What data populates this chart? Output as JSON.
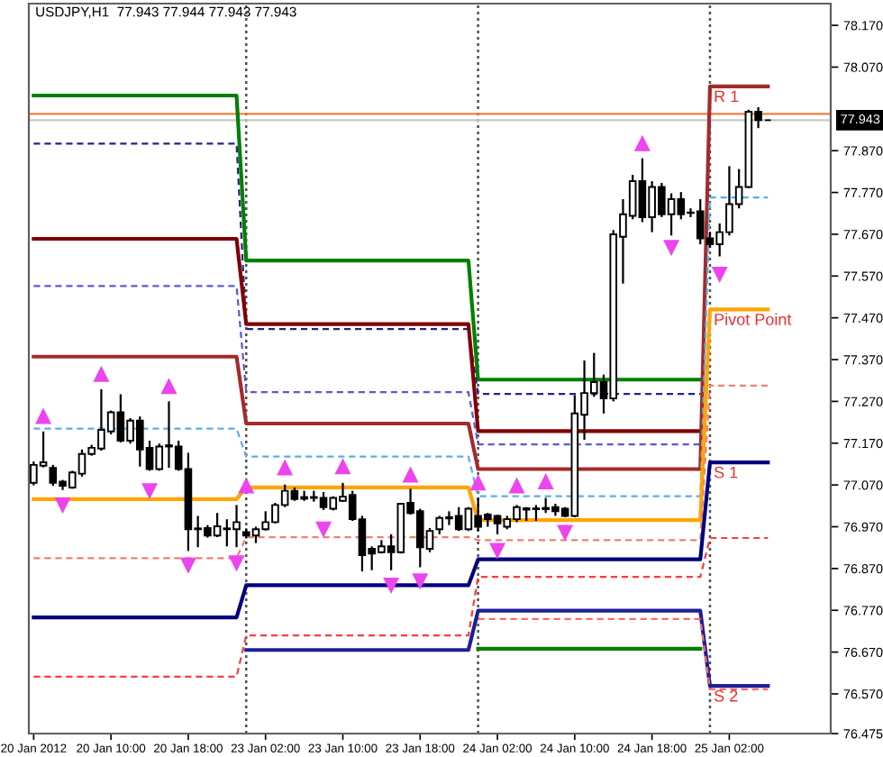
{
  "chart_data": {
    "type": "candlestick",
    "title": "USDJPY,H1  77.943 77.944 77.943 77.943",
    "categories": [
      "20 Jan 2012",
      null,
      null,
      null,
      null,
      null,
      null,
      null,
      "20 Jan 10:00",
      null,
      null,
      null,
      null,
      null,
      null,
      null,
      "20 Jan 18:00",
      null,
      null,
      null,
      null,
      null,
      null,
      null,
      "23 Jan 02:00",
      null,
      null,
      null,
      null,
      null,
      null,
      null,
      "23 Jan 10:00",
      null,
      null,
      null,
      null,
      null,
      null,
      null,
      "23 Jan 18:00",
      null,
      null,
      null,
      null,
      null,
      null,
      null,
      "24 Jan 02:00",
      null,
      null,
      null,
      null,
      null,
      null,
      null,
      "24 Jan 10:00",
      null,
      null,
      null,
      null,
      null,
      null,
      null,
      "24 Jan 18:00",
      null,
      null,
      null,
      null,
      null,
      null,
      null,
      "25 Jan 02:00",
      null,
      null,
      null,
      null,
      null,
      null,
      null,
      null,
      null,
      null
    ],
    "ohlc": [
      [
        77.075,
        77.126,
        77.069,
        77.118
      ],
      [
        77.116,
        77.198,
        77.112,
        77.124
      ],
      [
        77.111,
        77.118,
        77.068,
        77.075
      ],
      [
        77.078,
        77.082,
        77.058,
        77.068
      ],
      [
        77.064,
        77.104,
        77.061,
        77.1
      ],
      [
        77.097,
        77.155,
        77.09,
        77.144
      ],
      [
        77.144,
        77.166,
        77.14,
        77.159
      ],
      [
        77.157,
        77.299,
        77.152,
        77.202
      ],
      [
        77.198,
        77.248,
        77.191,
        77.244
      ],
      [
        77.244,
        77.287,
        77.172,
        77.176
      ],
      [
        77.176,
        77.23,
        77.169,
        77.224
      ],
      [
        77.224,
        77.234,
        77.114,
        77.155
      ],
      [
        77.159,
        77.176,
        77.104,
        77.108
      ],
      [
        77.108,
        77.169,
        77.104,
        77.162
      ],
      [
        77.162,
        77.27,
        77.111,
        77.165
      ],
      [
        77.162,
        77.176,
        77.104,
        77.108
      ],
      [
        77.108,
        77.147,
        76.912,
        76.964
      ],
      [
        76.964,
        76.996,
        76.921,
        76.966
      ],
      [
        76.967,
        76.974,
        76.944,
        76.949
      ],
      [
        76.949,
        77.003,
        76.945,
        76.971
      ],
      [
        76.964,
        76.988,
        76.923,
        76.966
      ],
      [
        76.964,
        77.022,
        76.921,
        76.981
      ],
      [
        76.957,
        76.966,
        76.942,
        76.949
      ],
      [
        76.949,
        76.97,
        76.931,
        76.964
      ],
      [
        76.964,
        77.007,
        76.961,
        76.981
      ],
      [
        76.981,
        77.027,
        76.978,
        77.022
      ],
      [
        77.022,
        77.071,
        77.017,
        77.056
      ],
      [
        77.056,
        77.064,
        77.032,
        77.036
      ],
      [
        77.037,
        77.056,
        77.032,
        77.041
      ],
      [
        77.041,
        77.056,
        77.03,
        77.039
      ],
      [
        77.039,
        77.053,
        77.01,
        77.017
      ],
      [
        77.013,
        77.043,
        77.009,
        77.039
      ],
      [
        77.032,
        77.075,
        77.03,
        77.042
      ],
      [
        77.046,
        77.056,
        76.984,
        76.988
      ],
      [
        76.988,
        76.996,
        76.863,
        76.902
      ],
      [
        76.917,
        76.923,
        76.866,
        76.906
      ],
      [
        76.909,
        76.938,
        76.906,
        76.923
      ],
      [
        76.923,
        76.952,
        76.866,
        76.909
      ],
      [
        76.909,
        77.027,
        76.906,
        77.025
      ],
      [
        77.027,
        77.061,
        76.999,
        77.003
      ],
      [
        77.007,
        77.013,
        76.873,
        76.921
      ],
      [
        76.917,
        76.967,
        76.909,
        76.96
      ],
      [
        76.964,
        76.996,
        76.952,
        76.991
      ],
      [
        76.99,
        77.007,
        76.974,
        76.993
      ],
      [
        76.996,
        77.017,
        76.96,
        76.964
      ],
      [
        76.964,
        77.017,
        76.96,
        77.013
      ],
      [
        76.996,
        77.039,
        76.96,
        76.97
      ],
      [
        76.999,
        77.003,
        76.97,
        76.988
      ],
      [
        76.996,
        76.999,
        76.952,
        76.978
      ],
      [
        76.97,
        76.996,
        76.964,
        76.988
      ],
      [
        76.988,
        77.022,
        76.981,
        77.017
      ],
      [
        77.011,
        77.017,
        76.984,
        77.014
      ],
      [
        77.014,
        77.022,
        76.984,
        77.012
      ],
      [
        77.012,
        77.039,
        77.003,
        77.015
      ],
      [
        77.017,
        77.025,
        76.996,
        77.007
      ],
      [
        77.013,
        77.017,
        76.993,
        76.996
      ],
      [
        76.996,
        77.285,
        76.993,
        77.241
      ],
      [
        77.238,
        77.368,
        77.178,
        77.29
      ],
      [
        77.29,
        77.386,
        77.281,
        77.316
      ],
      [
        77.316,
        77.334,
        77.241,
        77.277
      ],
      [
        77.277,
        77.68,
        77.27,
        77.67
      ],
      [
        77.664,
        77.754,
        77.552,
        77.718
      ],
      [
        77.714,
        77.812,
        77.706,
        77.797
      ],
      [
        77.797,
        77.852,
        77.699,
        77.711
      ],
      [
        77.711,
        77.797,
        77.675,
        77.783
      ],
      [
        77.783,
        77.793,
        77.711,
        77.718
      ],
      [
        77.718,
        77.768,
        77.667,
        77.754
      ],
      [
        77.754,
        77.771,
        77.706,
        77.718
      ],
      [
        77.722,
        77.732,
        77.711,
        77.721
      ],
      [
        77.725,
        77.754,
        77.646,
        77.66
      ],
      [
        77.66,
        77.676,
        77.638,
        77.646
      ],
      [
        77.646,
        77.696,
        77.617,
        77.675
      ],
      [
        77.675,
        77.833,
        77.667,
        77.742
      ],
      [
        77.742,
        77.826,
        77.732,
        77.783
      ],
      [
        77.783,
        77.968,
        77.78,
        77.963
      ],
      [
        77.963,
        77.974,
        77.924,
        77.943
      ],
      [
        77.943,
        77.944,
        77.943,
        77.943
      ],
      null,
      null,
      null,
      null,
      null,
      null
    ],
    "color": "#000000",
    "ylim": [
      76.475,
      78.222
    ],
    "yticks": [
      {
        "value": 78.17,
        "label": "78.170"
      },
      {
        "value": 78.07,
        "label": "78.070"
      },
      {
        "value": 77.87,
        "label": "77.870"
      },
      {
        "value": 77.77,
        "label": "77.770"
      },
      {
        "value": 77.67,
        "label": "77.670"
      },
      {
        "value": 77.57,
        "label": "77.570"
      },
      {
        "value": 77.47,
        "label": "77.470"
      },
      {
        "value": 77.37,
        "label": "77.370"
      },
      {
        "value": 77.27,
        "label": "77.270"
      },
      {
        "value": 77.17,
        "label": "77.170"
      },
      {
        "value": 77.07,
        "label": "77.070"
      },
      {
        "value": 76.97,
        "label": "76.970"
      },
      {
        "value": 76.87,
        "label": "76.870"
      },
      {
        "value": 76.77,
        "label": "76.770"
      },
      {
        "value": 76.67,
        "label": "76.670"
      },
      {
        "value": 76.57,
        "label": "76.570"
      },
      {
        "value": 76.475,
        "label": "76.475"
      }
    ],
    "series": [
      {
        "type": "line",
        "color": "#008000",
        "line_style": "solid",
        "values": [
          78.002,
          78.002,
          78.002,
          78.002,
          78.002,
          78.002,
          78.002,
          78.002,
          78.002,
          78.002,
          78.002,
          78.002,
          78.002,
          78.002,
          78.002,
          78.002,
          78.002,
          78.002,
          78.002,
          78.002,
          78.002,
          78.002,
          77.607,
          77.607,
          77.607,
          77.607,
          77.607,
          77.607,
          77.607,
          77.607,
          77.607,
          77.607,
          77.607,
          77.607,
          77.607,
          77.607,
          77.607,
          77.607,
          77.607,
          77.607,
          77.607,
          77.607,
          77.607,
          77.607,
          77.607,
          77.607,
          77.322,
          77.322,
          77.322,
          77.322,
          77.322,
          77.322,
          77.322,
          77.322,
          77.322,
          77.322,
          77.322,
          77.322,
          77.322,
          77.322,
          77.322,
          77.322,
          77.322,
          77.322,
          77.322,
          77.322,
          77.322,
          77.322,
          77.322,
          77.322,
          null,
          null,
          null,
          null,
          null,
          null,
          null,
          null,
          null,
          null,
          null,
          null,
          null
        ]
      },
      {
        "type": "line",
        "color": "#23238c",
        "line_style": "dashed",
        "values": [
          77.887,
          77.887,
          77.887,
          77.887,
          77.887,
          77.887,
          77.887,
          77.887,
          77.887,
          77.887,
          77.887,
          77.887,
          77.887,
          77.887,
          77.887,
          77.887,
          77.887,
          77.887,
          77.887,
          77.887,
          77.887,
          77.887,
          77.443,
          77.443,
          77.443,
          77.443,
          77.443,
          77.443,
          77.443,
          77.443,
          77.443,
          77.443,
          77.443,
          77.443,
          77.443,
          77.443,
          77.443,
          77.443,
          77.443,
          77.443,
          77.443,
          77.443,
          77.443,
          77.443,
          77.443,
          77.443,
          77.288,
          77.288,
          77.288,
          77.288,
          77.288,
          77.288,
          77.288,
          77.288,
          77.288,
          77.288,
          77.288,
          77.288,
          77.288,
          77.288,
          77.288,
          77.288,
          77.288,
          77.288,
          77.288,
          77.288,
          77.288,
          77.288,
          77.288,
          77.288,
          null,
          null,
          null,
          null,
          null,
          null,
          null,
          null,
          null,
          null,
          null,
          null,
          null
        ]
      },
      {
        "type": "line",
        "color": "#800000",
        "line_style": "solid",
        "values": [
          77.659,
          77.659,
          77.659,
          77.659,
          77.659,
          77.659,
          77.659,
          77.659,
          77.659,
          77.659,
          77.659,
          77.659,
          77.659,
          77.659,
          77.659,
          77.659,
          77.659,
          77.659,
          77.659,
          77.659,
          77.659,
          77.659,
          77.455,
          77.455,
          77.455,
          77.455,
          77.455,
          77.455,
          77.455,
          77.455,
          77.455,
          77.455,
          77.455,
          77.455,
          77.455,
          77.455,
          77.455,
          77.455,
          77.455,
          77.455,
          77.455,
          77.455,
          77.455,
          77.455,
          77.455,
          77.455,
          77.199,
          77.199,
          77.199,
          77.199,
          77.199,
          77.199,
          77.199,
          77.199,
          77.199,
          77.199,
          77.199,
          77.199,
          77.199,
          77.199,
          77.199,
          77.199,
          77.199,
          77.199,
          77.199,
          77.199,
          77.199,
          77.199,
          77.199,
          77.199,
          null,
          null,
          null,
          null,
          null,
          null,
          null,
          null,
          null,
          null,
          null,
          null,
          null
        ]
      },
      {
        "type": "line",
        "color": "#5a5ad2",
        "line_style": "dashed",
        "values": [
          77.546,
          77.546,
          77.546,
          77.546,
          77.546,
          77.546,
          77.546,
          77.546,
          77.546,
          77.546,
          77.546,
          77.546,
          77.546,
          77.546,
          77.546,
          77.546,
          77.546,
          77.546,
          77.546,
          77.546,
          77.546,
          77.546,
          77.292,
          77.292,
          77.292,
          77.292,
          77.292,
          77.292,
          77.292,
          77.292,
          77.292,
          77.292,
          77.292,
          77.292,
          77.292,
          77.292,
          77.292,
          77.292,
          77.292,
          77.292,
          77.292,
          77.292,
          77.292,
          77.292,
          77.292,
          77.292,
          77.167,
          77.167,
          77.167,
          77.167,
          77.167,
          77.167,
          77.167,
          77.167,
          77.167,
          77.167,
          77.167,
          77.167,
          77.167,
          77.167,
          77.167,
          77.167,
          77.167,
          77.167,
          77.167,
          77.167,
          77.167,
          77.167,
          77.167,
          77.167,
          null,
          null,
          null,
          null,
          null,
          null,
          null,
          null,
          null,
          null,
          null,
          null,
          null
        ]
      },
      {
        "type": "line",
        "name": "R 1",
        "color": "#a52a2a",
        "line_style": "solid",
        "values": [
          77.377,
          77.377,
          77.377,
          77.377,
          77.377,
          77.377,
          77.377,
          77.377,
          77.377,
          77.377,
          77.377,
          77.377,
          77.377,
          77.377,
          77.377,
          77.377,
          77.377,
          77.377,
          77.377,
          77.377,
          77.377,
          77.377,
          77.217,
          77.217,
          77.217,
          77.217,
          77.217,
          77.217,
          77.217,
          77.217,
          77.217,
          77.217,
          77.217,
          77.217,
          77.217,
          77.217,
          77.217,
          77.217,
          77.217,
          77.217,
          77.217,
          77.217,
          77.217,
          77.217,
          77.217,
          77.217,
          77.108,
          77.108,
          77.108,
          77.108,
          77.108,
          77.108,
          77.108,
          77.108,
          77.108,
          77.108,
          77.108,
          77.108,
          77.108,
          77.108,
          77.108,
          77.108,
          77.108,
          77.108,
          77.108,
          77.108,
          77.108,
          77.108,
          77.108,
          77.108,
          78.024,
          78.024,
          78.024,
          78.024,
          78.024,
          78.024,
          78.024,
          null,
          null,
          null,
          null,
          null,
          null
        ]
      },
      {
        "type": "line",
        "color": "#5aaee6",
        "line_style": "dashed",
        "values": [
          77.205,
          77.205,
          77.205,
          77.205,
          77.205,
          77.205,
          77.205,
          77.205,
          77.205,
          77.205,
          77.205,
          77.205,
          77.205,
          77.205,
          77.205,
          77.205,
          77.205,
          77.205,
          77.205,
          77.205,
          77.205,
          77.205,
          77.138,
          77.138,
          77.138,
          77.138,
          77.138,
          77.138,
          77.138,
          77.138,
          77.138,
          77.138,
          77.138,
          77.138,
          77.138,
          77.138,
          77.138,
          77.138,
          77.138,
          77.138,
          77.138,
          77.138,
          77.138,
          77.138,
          77.138,
          77.138,
          77.043,
          77.043,
          77.043,
          77.043,
          77.043,
          77.043,
          77.043,
          77.043,
          77.043,
          77.043,
          77.043,
          77.043,
          77.043,
          77.043,
          77.043,
          77.043,
          77.043,
          77.043,
          77.043,
          77.043,
          77.043,
          77.043,
          77.043,
          77.043,
          77.758,
          77.758,
          77.758,
          77.758,
          77.758,
          77.758,
          77.758,
          null,
          null,
          null,
          null,
          null,
          null
        ]
      },
      {
        "type": "line",
        "name": "Pivot Point",
        "color": "#ffa500",
        "line_style": "solid",
        "values": [
          77.036,
          77.036,
          77.036,
          77.036,
          77.036,
          77.036,
          77.036,
          77.036,
          77.036,
          77.036,
          77.036,
          77.036,
          77.036,
          77.036,
          77.036,
          77.036,
          77.036,
          77.036,
          77.036,
          77.036,
          77.036,
          77.036,
          77.064,
          77.064,
          77.064,
          77.064,
          77.064,
          77.064,
          77.064,
          77.064,
          77.064,
          77.064,
          77.064,
          77.064,
          77.064,
          77.064,
          77.064,
          77.064,
          77.064,
          77.064,
          77.064,
          77.064,
          77.064,
          77.064,
          77.064,
          77.064,
          76.986,
          76.986,
          76.986,
          76.986,
          76.986,
          76.986,
          76.986,
          76.986,
          76.986,
          76.986,
          76.986,
          76.986,
          76.986,
          76.986,
          76.986,
          76.986,
          76.986,
          76.986,
          76.986,
          76.986,
          76.986,
          76.986,
          76.986,
          76.986,
          77.49,
          77.49,
          77.49,
          77.49,
          77.49,
          77.49,
          77.49,
          null,
          null,
          null,
          null,
          null,
          null
        ]
      },
      {
        "type": "line",
        "color": "#f08070",
        "line_style": "dashed",
        "values": [
          76.895,
          76.895,
          76.895,
          76.895,
          76.895,
          76.895,
          76.895,
          76.895,
          76.895,
          76.895,
          76.895,
          76.895,
          76.895,
          76.895,
          76.895,
          76.895,
          76.895,
          76.895,
          76.895,
          76.895,
          76.895,
          76.895,
          76.945,
          76.945,
          76.945,
          76.945,
          76.945,
          76.945,
          76.945,
          76.945,
          76.945,
          76.945,
          76.945,
          76.945,
          76.945,
          76.945,
          76.945,
          76.945,
          76.945,
          76.945,
          76.945,
          76.945,
          76.945,
          76.945,
          76.945,
          76.945,
          76.938,
          76.938,
          76.938,
          76.938,
          76.938,
          76.938,
          76.938,
          76.938,
          76.938,
          76.938,
          76.938,
          76.938,
          76.938,
          76.938,
          76.938,
          76.938,
          76.938,
          76.938,
          76.938,
          76.938,
          76.938,
          76.938,
          76.938,
          76.938,
          77.308,
          77.308,
          77.308,
          77.308,
          77.308,
          77.308,
          77.308,
          null,
          null,
          null,
          null,
          null,
          null
        ]
      },
      {
        "type": "line",
        "name": "S 1",
        "color": "#000080",
        "line_style": "solid",
        "values": [
          76.753,
          76.753,
          76.753,
          76.753,
          76.753,
          76.753,
          76.753,
          76.753,
          76.753,
          76.753,
          76.753,
          76.753,
          76.753,
          76.753,
          76.753,
          76.753,
          76.753,
          76.753,
          76.753,
          76.753,
          76.753,
          76.753,
          76.83,
          76.83,
          76.83,
          76.83,
          76.83,
          76.83,
          76.83,
          76.83,
          76.83,
          76.83,
          76.83,
          76.83,
          76.83,
          76.83,
          76.83,
          76.83,
          76.83,
          76.83,
          76.83,
          76.83,
          76.83,
          76.83,
          76.83,
          76.83,
          76.892,
          76.892,
          76.892,
          76.892,
          76.892,
          76.892,
          76.892,
          76.892,
          76.892,
          76.892,
          76.892,
          76.892,
          76.892,
          76.892,
          76.892,
          76.892,
          76.892,
          76.892,
          76.892,
          76.892,
          76.892,
          76.892,
          76.892,
          76.892,
          77.124,
          77.124,
          77.124,
          77.124,
          77.124,
          77.124,
          77.124,
          null,
          null,
          null,
          null,
          null,
          null
        ]
      },
      {
        "type": "line",
        "color": "#ff3c3c",
        "line_style": "dashed",
        "values": [
          76.611,
          76.611,
          76.611,
          76.611,
          76.611,
          76.611,
          76.611,
          76.611,
          76.611,
          76.611,
          76.611,
          76.611,
          76.611,
          76.611,
          76.611,
          76.611,
          76.611,
          76.611,
          76.611,
          76.611,
          76.611,
          76.611,
          76.71,
          76.71,
          76.71,
          76.71,
          76.71,
          76.71,
          76.71,
          76.71,
          76.71,
          76.71,
          76.71,
          76.71,
          76.71,
          76.71,
          76.71,
          76.71,
          76.71,
          76.71,
          76.71,
          76.71,
          76.71,
          76.71,
          76.71,
          76.71,
          76.85,
          76.85,
          76.85,
          76.85,
          76.85,
          76.85,
          76.85,
          76.85,
          76.85,
          76.85,
          76.85,
          76.85,
          76.85,
          76.85,
          76.85,
          76.85,
          76.85,
          76.85,
          76.85,
          76.85,
          76.85,
          76.85,
          76.85,
          76.85,
          76.943,
          76.943,
          76.943,
          76.943,
          76.943,
          76.943,
          76.943,
          null,
          null,
          null,
          null,
          null,
          null
        ]
      },
      {
        "type": "line",
        "name": "S 2",
        "color": "#1e1e96",
        "line_style": "solid",
        "values": [
          null,
          null,
          null,
          null,
          null,
          null,
          null,
          null,
          null,
          null,
          null,
          null,
          null,
          null,
          null,
          null,
          null,
          null,
          null,
          null,
          null,
          null,
          76.675,
          76.675,
          76.675,
          76.675,
          76.675,
          76.675,
          76.675,
          76.675,
          76.675,
          76.675,
          76.675,
          76.675,
          76.675,
          76.675,
          76.675,
          76.675,
          76.675,
          76.675,
          76.675,
          76.675,
          76.675,
          76.675,
          76.675,
          76.675,
          76.769,
          76.769,
          76.769,
          76.769,
          76.769,
          76.769,
          76.769,
          76.769,
          76.769,
          76.769,
          76.769,
          76.769,
          76.769,
          76.769,
          76.769,
          76.769,
          76.769,
          76.769,
          76.769,
          76.769,
          76.769,
          76.769,
          76.769,
          76.769,
          76.589,
          76.589,
          76.589,
          76.589,
          76.589,
          76.589,
          76.589,
          null,
          null,
          null,
          null,
          null,
          null
        ]
      },
      {
        "type": "line",
        "color": "#ff6a6a",
        "line_style": "dashed",
        "values": [
          null,
          null,
          null,
          null,
          null,
          null,
          null,
          null,
          null,
          null,
          null,
          null,
          null,
          null,
          null,
          null,
          null,
          null,
          null,
          null,
          null,
          null,
          null,
          null,
          null,
          null,
          null,
          null,
          null,
          null,
          null,
          null,
          null,
          null,
          null,
          null,
          null,
          null,
          null,
          null,
          null,
          null,
          null,
          null,
          null,
          null,
          76.749,
          76.749,
          76.749,
          76.749,
          76.749,
          76.749,
          76.749,
          76.749,
          76.749,
          76.749,
          76.749,
          76.749,
          76.749,
          76.749,
          76.749,
          76.749,
          76.749,
          76.749,
          76.749,
          76.749,
          76.749,
          76.749,
          76.749,
          76.749,
          76.581,
          76.581,
          76.581,
          76.581,
          76.581,
          76.581,
          76.581,
          null,
          null,
          null,
          null,
          null,
          null
        ]
      },
      {
        "type": "line",
        "color": "#008000",
        "line_style": "solid",
        "values": [
          null,
          null,
          null,
          null,
          null,
          null,
          null,
          null,
          null,
          null,
          null,
          null,
          null,
          null,
          null,
          null,
          null,
          null,
          null,
          null,
          null,
          null,
          null,
          null,
          null,
          null,
          null,
          null,
          null,
          null,
          null,
          null,
          null,
          null,
          null,
          null,
          null,
          null,
          null,
          null,
          null,
          null,
          null,
          null,
          null,
          null,
          76.678,
          76.678,
          76.678,
          76.678,
          76.678,
          76.678,
          76.678,
          76.678,
          76.678,
          76.678,
          76.678,
          76.678,
          76.678,
          76.678,
          76.678,
          76.678,
          76.678,
          76.678,
          76.678,
          76.678,
          76.678,
          76.678,
          76.678,
          76.678,
          null,
          null,
          null,
          null,
          null,
          null,
          null,
          null,
          null,
          null,
          null,
          null,
          null
        ]
      },
      {
        "type": "scatter",
        "color": "#ee44ee",
        "marker": "triangle",
        "values": [
          null,
          77.234,
          null,
          null,
          null,
          null,
          null,
          77.335,
          null,
          null,
          null,
          null,
          null,
          null,
          77.306,
          null,
          null,
          null,
          null,
          null,
          null,
          null,
          77.068,
          null,
          null,
          null,
          77.111,
          null,
          null,
          null,
          null,
          null,
          77.114,
          null,
          null,
          null,
          null,
          null,
          null,
          77.094,
          null,
          null,
          null,
          null,
          null,
          null,
          77.075,
          null,
          null,
          null,
          77.068,
          null,
          null,
          77.078,
          null,
          null,
          null,
          null,
          null,
          null,
          null,
          null,
          null,
          77.887,
          null,
          null,
          null,
          null,
          null,
          null,
          null,
          null,
          null,
          null,
          null,
          null,
          null,
          null,
          null,
          null,
          null,
          null,
          null
        ]
      },
      {
        "type": "scatter",
        "color": "#ee44ee",
        "marker": "triangle",
        "values": [
          null,
          null,
          null,
          77.022,
          null,
          null,
          null,
          null,
          null,
          null,
          null,
          null,
          77.056,
          null,
          null,
          null,
          76.878,
          null,
          null,
          null,
          null,
          76.883,
          null,
          null,
          null,
          null,
          null,
          null,
          null,
          null,
          76.964,
          null,
          null,
          null,
          null,
          null,
          null,
          76.83,
          null,
          null,
          76.84,
          null,
          null,
          null,
          null,
          null,
          null,
          null,
          76.913,
          null,
          null,
          null,
          null,
          null,
          null,
          76.956,
          null,
          null,
          null,
          null,
          null,
          null,
          null,
          null,
          null,
          null,
          77.638,
          null,
          null,
          null,
          null,
          77.574,
          null,
          null,
          null,
          null,
          null,
          null,
          null,
          null,
          null,
          null,
          null
        ]
      }
    ],
    "ref_lines": [
      {
        "axis": "y",
        "value": 77.958,
        "color": "#f08040",
        "line_style": "solid"
      },
      {
        "axis": "y",
        "value": 77.943,
        "label": "77.943",
        "color": "#c8c8c8",
        "line_style": "solid"
      }
    ]
  }
}
